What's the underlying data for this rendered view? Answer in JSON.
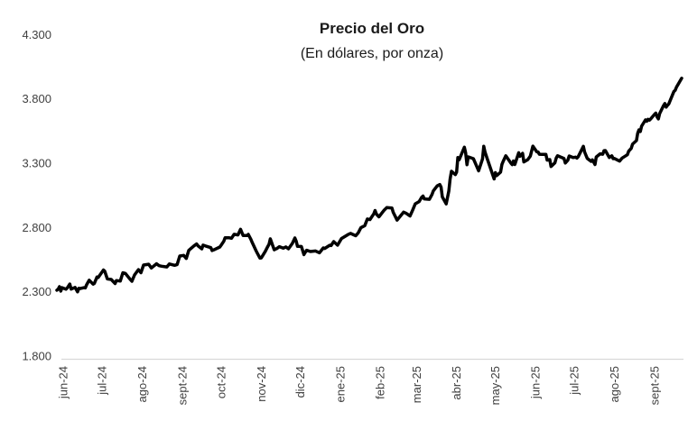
{
  "chart_data": {
    "type": "line",
    "title": "Precio del Oro",
    "subtitle": "(En dólares, por onza)",
    "xlabel": "",
    "ylabel": "",
    "ylim": [
      1800,
      4300
    ],
    "grid": false,
    "legend_position": "none",
    "line_color": "#000000",
    "axis_line_color": "#d9d9d9",
    "tick_text_color": "#404040",
    "y_ticks": [
      {
        "value": 1800,
        "label": "1.800"
      },
      {
        "value": 2300,
        "label": "2.300"
      },
      {
        "value": 2800,
        "label": "2.800"
      },
      {
        "value": 3300,
        "label": "3.300"
      },
      {
        "value": 3800,
        "label": "3.800"
      },
      {
        "value": 4300,
        "label": "4.300"
      }
    ],
    "x_ticks": [
      {
        "date": "2024-06-15",
        "label": "jun-24"
      },
      {
        "date": "2024-07-15",
        "label": "jul-24"
      },
      {
        "date": "2024-08-15",
        "label": "ago-24"
      },
      {
        "date": "2024-09-15",
        "label": "sept-24"
      },
      {
        "date": "2024-10-15",
        "label": "oct-24"
      },
      {
        "date": "2024-11-15",
        "label": "nov-24"
      },
      {
        "date": "2024-12-15",
        "label": "dic-24"
      },
      {
        "date": "2025-01-15",
        "label": "ene-25"
      },
      {
        "date": "2025-02-15",
        "label": "feb-25"
      },
      {
        "date": "2025-03-15",
        "label": "mar-25"
      },
      {
        "date": "2025-04-15",
        "label": "abr-25"
      },
      {
        "date": "2025-05-15",
        "label": "may-25"
      },
      {
        "date": "2025-06-15",
        "label": "jun-25"
      },
      {
        "date": "2025-07-15",
        "label": "jul-25"
      },
      {
        "date": "2025-08-15",
        "label": "ago-25"
      },
      {
        "date": "2025-09-15",
        "label": "sept-25"
      }
    ],
    "series": [
      {
        "name": "Precio del Oro (USD por onza)",
        "points": [
          [
            "2024-06-10",
            2312
          ],
          [
            "2024-06-11",
            2320
          ],
          [
            "2024-06-12",
            2340
          ],
          [
            "2024-06-13",
            2305
          ],
          [
            "2024-06-14",
            2332
          ],
          [
            "2024-06-17",
            2320
          ],
          [
            "2024-06-18",
            2330
          ],
          [
            "2024-06-20",
            2360
          ],
          [
            "2024-06-21",
            2321
          ],
          [
            "2024-06-24",
            2334
          ],
          [
            "2024-06-26",
            2300
          ],
          [
            "2024-06-27",
            2327
          ],
          [
            "2024-06-28",
            2325
          ],
          [
            "2024-07-01",
            2332
          ],
          [
            "2024-07-02",
            2330
          ],
          [
            "2024-07-03",
            2356
          ],
          [
            "2024-07-05",
            2390
          ],
          [
            "2024-07-08",
            2359
          ],
          [
            "2024-07-09",
            2365
          ],
          [
            "2024-07-11",
            2415
          ],
          [
            "2024-07-12",
            2411
          ],
          [
            "2024-07-16",
            2469
          ],
          [
            "2024-07-17",
            2460
          ],
          [
            "2024-07-19",
            2400
          ],
          [
            "2024-07-22",
            2396
          ],
          [
            "2024-07-25",
            2364
          ],
          [
            "2024-07-26",
            2387
          ],
          [
            "2024-07-29",
            2383
          ],
          [
            "2024-07-31",
            2448
          ],
          [
            "2024-08-02",
            2443
          ],
          [
            "2024-08-05",
            2405
          ],
          [
            "2024-08-07",
            2382
          ],
          [
            "2024-08-09",
            2431
          ],
          [
            "2024-08-12",
            2472
          ],
          [
            "2024-08-14",
            2448
          ],
          [
            "2024-08-16",
            2508
          ],
          [
            "2024-08-20",
            2514
          ],
          [
            "2024-08-22",
            2485
          ],
          [
            "2024-08-26",
            2518
          ],
          [
            "2024-08-28",
            2503
          ],
          [
            "2024-08-30",
            2499
          ],
          [
            "2024-09-03",
            2493
          ],
          [
            "2024-09-05",
            2516
          ],
          [
            "2024-09-09",
            2506
          ],
          [
            "2024-09-11",
            2512
          ],
          [
            "2024-09-13",
            2578
          ],
          [
            "2024-09-16",
            2583
          ],
          [
            "2024-09-18",
            2559
          ],
          [
            "2024-09-20",
            2622
          ],
          [
            "2024-09-24",
            2657
          ],
          [
            "2024-09-26",
            2672
          ],
          [
            "2024-09-27",
            2658
          ],
          [
            "2024-09-30",
            2634
          ],
          [
            "2024-10-01",
            2663
          ],
          [
            "2024-10-03",
            2656
          ],
          [
            "2024-10-07",
            2643
          ],
          [
            "2024-10-08",
            2621
          ],
          [
            "2024-10-10",
            2629
          ],
          [
            "2024-10-14",
            2648
          ],
          [
            "2024-10-15",
            2663
          ],
          [
            "2024-10-17",
            2692
          ],
          [
            "2024-10-18",
            2720
          ],
          [
            "2024-10-21",
            2720
          ],
          [
            "2024-10-23",
            2716
          ],
          [
            "2024-10-25",
            2747
          ],
          [
            "2024-10-28",
            2742
          ],
          [
            "2024-10-30",
            2786
          ],
          [
            "2024-11-01",
            2737
          ],
          [
            "2024-11-04",
            2737
          ],
          [
            "2024-11-05",
            2746
          ],
          [
            "2024-11-07",
            2707
          ],
          [
            "2024-11-08",
            2684
          ],
          [
            "2024-11-11",
            2619
          ],
          [
            "2024-11-12",
            2598
          ],
          [
            "2024-11-14",
            2562
          ],
          [
            "2024-11-15",
            2563
          ],
          [
            "2024-11-18",
            2612
          ],
          [
            "2024-11-20",
            2651
          ],
          [
            "2024-11-21",
            2670
          ],
          [
            "2024-11-22",
            2712
          ],
          [
            "2024-11-25",
            2626
          ],
          [
            "2024-11-26",
            2632
          ],
          [
            "2024-11-27",
            2636
          ],
          [
            "2024-11-29",
            2651
          ],
          [
            "2024-12-02",
            2639
          ],
          [
            "2024-12-04",
            2649
          ],
          [
            "2024-12-06",
            2634
          ],
          [
            "2024-12-09",
            2676
          ],
          [
            "2024-12-11",
            2718
          ],
          [
            "2024-12-12",
            2692
          ],
          [
            "2024-12-13",
            2653
          ],
          [
            "2024-12-16",
            2652
          ],
          [
            "2024-12-18",
            2589
          ],
          [
            "2024-12-20",
            2623
          ],
          [
            "2024-12-23",
            2613
          ],
          [
            "2024-12-27",
            2617
          ],
          [
            "2024-12-30",
            2603
          ],
          [
            "2025-01-02",
            2641
          ],
          [
            "2025-01-03",
            2637
          ],
          [
            "2025-01-07",
            2662
          ],
          [
            "2025-01-08",
            2659
          ],
          [
            "2025-01-10",
            2690
          ],
          [
            "2025-01-13",
            2663
          ],
          [
            "2025-01-15",
            2697
          ],
          [
            "2025-01-16",
            2714
          ],
          [
            "2025-01-21",
            2745
          ],
          [
            "2025-01-23",
            2754
          ],
          [
            "2025-01-27",
            2736
          ],
          [
            "2025-01-29",
            2759
          ],
          [
            "2025-01-31",
            2798
          ],
          [
            "2025-02-03",
            2814
          ],
          [
            "2025-02-05",
            2866
          ],
          [
            "2025-02-07",
            2861
          ],
          [
            "2025-02-10",
            2906
          ],
          [
            "2025-02-11",
            2932
          ],
          [
            "2025-02-12",
            2904
          ],
          [
            "2025-02-14",
            2883
          ],
          [
            "2025-02-18",
            2935
          ],
          [
            "2025-02-20",
            2954
          ],
          [
            "2025-02-24",
            2951
          ],
          [
            "2025-02-25",
            2918
          ],
          [
            "2025-02-27",
            2877
          ],
          [
            "2025-02-28",
            2857
          ],
          [
            "2025-03-03",
            2894
          ],
          [
            "2025-03-05",
            2919
          ],
          [
            "2025-03-07",
            2910
          ],
          [
            "2025-03-10",
            2889
          ],
          [
            "2025-03-12",
            2934
          ],
          [
            "2025-03-14",
            2984
          ],
          [
            "2025-03-17",
            3001
          ],
          [
            "2025-03-19",
            3034
          ],
          [
            "2025-03-20",
            3044
          ],
          [
            "2025-03-21",
            3022
          ],
          [
            "2025-03-25",
            3019
          ],
          [
            "2025-03-27",
            3057
          ],
          [
            "2025-03-28",
            3084
          ],
          [
            "2025-03-31",
            3123
          ],
          [
            "2025-04-02",
            3134
          ],
          [
            "2025-04-03",
            3114
          ],
          [
            "2025-04-04",
            3038
          ],
          [
            "2025-04-07",
            2983
          ],
          [
            "2025-04-09",
            3083
          ],
          [
            "2025-04-10",
            3176
          ],
          [
            "2025-04-11",
            3237
          ],
          [
            "2025-04-14",
            3211
          ],
          [
            "2025-04-15",
            3230
          ],
          [
            "2025-04-16",
            3343
          ],
          [
            "2025-04-17",
            3327
          ],
          [
            "2025-04-21",
            3424
          ],
          [
            "2025-04-22",
            3381
          ],
          [
            "2025-04-23",
            3288
          ],
          [
            "2025-04-24",
            3349
          ],
          [
            "2025-04-28",
            3335
          ],
          [
            "2025-04-30",
            3288
          ],
          [
            "2025-05-02",
            3240
          ],
          [
            "2025-05-05",
            3333
          ],
          [
            "2025-05-06",
            3431
          ],
          [
            "2025-05-07",
            3386
          ],
          [
            "2025-05-09",
            3325
          ],
          [
            "2025-05-12",
            3236
          ],
          [
            "2025-05-14",
            3177
          ],
          [
            "2025-05-15",
            3226
          ],
          [
            "2025-05-16",
            3203
          ],
          [
            "2025-05-19",
            3230
          ],
          [
            "2025-05-20",
            3290
          ],
          [
            "2025-05-21",
            3314
          ],
          [
            "2025-05-23",
            3357
          ],
          [
            "2025-05-27",
            3300
          ],
          [
            "2025-05-28",
            3288
          ],
          [
            "2025-05-29",
            3317
          ],
          [
            "2025-05-30",
            3289
          ],
          [
            "2025-06-02",
            3381
          ],
          [
            "2025-06-03",
            3353
          ],
          [
            "2025-06-05",
            3376
          ],
          [
            "2025-06-06",
            3310
          ],
          [
            "2025-06-09",
            3327
          ],
          [
            "2025-06-11",
            3355
          ],
          [
            "2025-06-13",
            3432
          ],
          [
            "2025-06-16",
            3388
          ],
          [
            "2025-06-17",
            3387
          ],
          [
            "2025-06-18",
            3369
          ],
          [
            "2025-06-20",
            3368
          ],
          [
            "2025-06-23",
            3368
          ],
          [
            "2025-06-24",
            3324
          ],
          [
            "2025-06-26",
            3328
          ],
          [
            "2025-06-27",
            3274
          ],
          [
            "2025-06-30",
            3303
          ],
          [
            "2025-07-01",
            3339
          ],
          [
            "2025-07-02",
            3357
          ],
          [
            "2025-07-07",
            3337
          ],
          [
            "2025-07-08",
            3301
          ],
          [
            "2025-07-10",
            3323
          ],
          [
            "2025-07-11",
            3356
          ],
          [
            "2025-07-14",
            3343
          ],
          [
            "2025-07-16",
            3347
          ],
          [
            "2025-07-17",
            3339
          ],
          [
            "2025-07-18",
            3350
          ],
          [
            "2025-07-22",
            3431
          ],
          [
            "2025-07-23",
            3387
          ],
          [
            "2025-07-25",
            3337
          ],
          [
            "2025-07-28",
            3314
          ],
          [
            "2025-07-29",
            3326
          ],
          [
            "2025-07-31",
            3289
          ],
          [
            "2025-08-01",
            3348
          ],
          [
            "2025-08-04",
            3373
          ],
          [
            "2025-08-06",
            3369
          ],
          [
            "2025-08-07",
            3397
          ],
          [
            "2025-08-08",
            3398
          ],
          [
            "2025-08-11",
            3344
          ],
          [
            "2025-08-13",
            3357
          ],
          [
            "2025-08-14",
            3335
          ],
          [
            "2025-08-15",
            3336
          ],
          [
            "2025-08-19",
            3316
          ],
          [
            "2025-08-21",
            3340
          ],
          [
            "2025-08-25",
            3365
          ],
          [
            "2025-08-26",
            3393
          ],
          [
            "2025-08-28",
            3415
          ],
          [
            "2025-08-29",
            3448
          ],
          [
            "2025-09-01",
            3476
          ],
          [
            "2025-09-02",
            3533
          ],
          [
            "2025-09-03",
            3559
          ],
          [
            "2025-09-04",
            3546
          ],
          [
            "2025-09-05",
            3587
          ],
          [
            "2025-09-08",
            3636
          ],
          [
            "2025-09-09",
            3626
          ],
          [
            "2025-09-10",
            3641
          ],
          [
            "2025-09-11",
            3634
          ],
          [
            "2025-09-12",
            3643
          ],
          [
            "2025-09-15",
            3679
          ],
          [
            "2025-09-16",
            3689
          ],
          [
            "2025-09-17",
            3659
          ],
          [
            "2025-09-18",
            3644
          ],
          [
            "2025-09-19",
            3685
          ],
          [
            "2025-09-22",
            3747
          ],
          [
            "2025-09-23",
            3764
          ],
          [
            "2025-09-24",
            3736
          ],
          [
            "2025-09-25",
            3749
          ],
          [
            "2025-09-26",
            3760
          ],
          [
            "2025-09-29",
            3834
          ],
          [
            "2025-09-30",
            3858
          ],
          [
            "2025-10-01",
            3866
          ],
          [
            "2025-10-02",
            3892
          ],
          [
            "2025-10-03",
            3908
          ],
          [
            "2025-10-06",
            3960
          ]
        ]
      }
    ]
  }
}
